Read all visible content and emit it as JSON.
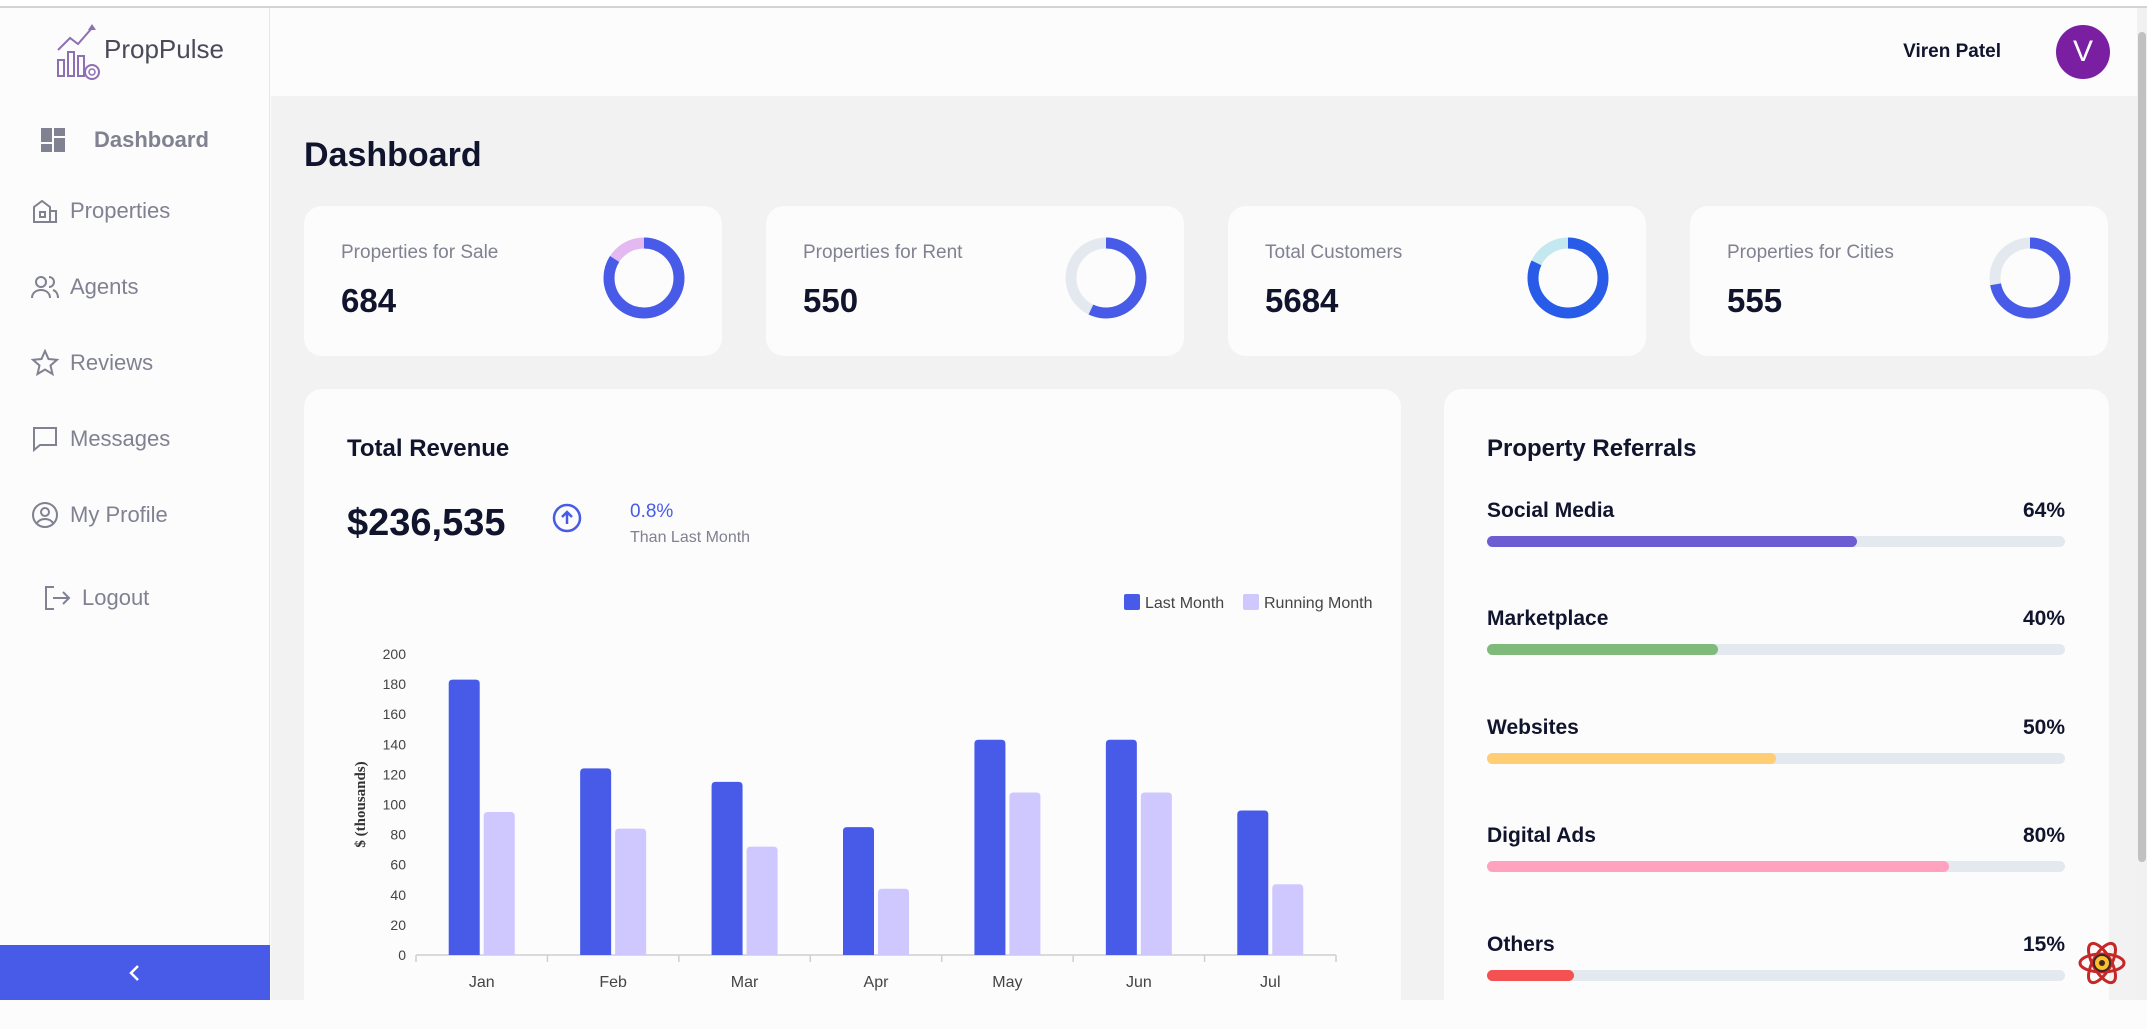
{
  "app": {
    "name": "PropPulse"
  },
  "colors": {
    "accent": "#475be8",
    "avatar": "#7b1fa2"
  },
  "user": {
    "name": "Viren Patel",
    "initial": "V"
  },
  "sidebar": {
    "items": [
      {
        "label": "Dashboard",
        "icon": "dashboard-icon",
        "active": true
      },
      {
        "label": "Properties",
        "icon": "building-icon"
      },
      {
        "label": "Agents",
        "icon": "people-icon"
      },
      {
        "label": "Reviews",
        "icon": "star-icon"
      },
      {
        "label": "Messages",
        "icon": "chat-icon"
      },
      {
        "label": "My Profile",
        "icon": "user-circle-icon"
      }
    ],
    "logout_label": "Logout",
    "collapse_icon": "chevron-left-icon"
  },
  "page": {
    "title": "Dashboard"
  },
  "stats": [
    {
      "label": "Properties for Sale",
      "value": "684",
      "donut_fraction": 0.84,
      "colors": [
        "#475be8",
        "#e4b8f1"
      ]
    },
    {
      "label": "Properties for Rent",
      "value": "550",
      "donut_fraction": 0.57,
      "colors": [
        "#475be8",
        "#e4e8ef"
      ]
    },
    {
      "label": "Total Customers",
      "value": "5684",
      "donut_fraction": 0.82,
      "colors": [
        "#275be8",
        "#c4e8ef"
      ]
    },
    {
      "label": "Properties for Cities",
      "value": "555",
      "donut_fraction": 0.72,
      "colors": [
        "#475be8",
        "#e4e8ef"
      ]
    }
  ],
  "revenue": {
    "title": "Total Revenue",
    "value": "$236,535",
    "change_pct": "0.8%",
    "change_text": "Than Last Month",
    "change_icon": "arrow-up-circle-icon"
  },
  "chart_data": {
    "type": "bar",
    "categories": [
      "Jan",
      "Feb",
      "Mar",
      "Apr",
      "May",
      "Jun",
      "Jul"
    ],
    "series": [
      {
        "name": "Last Month",
        "color": "#475be8",
        "values": [
          183,
          124,
          115,
          85,
          143,
          143,
          96
        ]
      },
      {
        "name": "Running Month",
        "color": "#cfc8ff",
        "values": [
          95,
          84,
          72,
          44,
          108,
          108,
          47
        ]
      }
    ],
    "ylabel": "$ (thousands)",
    "xlabel": "",
    "ylim": [
      0,
      200
    ],
    "yticks": [
      0,
      20,
      40,
      60,
      80,
      100,
      120,
      140,
      160,
      180,
      200
    ],
    "legend_position": "top-right",
    "grid": false
  },
  "referrals": {
    "title": "Property Referrals",
    "items": [
      {
        "name": "Social Media",
        "pct_label": "64%",
        "fraction": 0.64,
        "color": "#6c5dd3"
      },
      {
        "name": "Marketplace",
        "pct_label": "40%",
        "fraction": 0.4,
        "color": "#7fba7a"
      },
      {
        "name": "Websites",
        "pct_label": "50%",
        "fraction": 0.5,
        "color": "#ffce73"
      },
      {
        "name": "Digital Ads",
        "pct_label": "80%",
        "fraction": 0.8,
        "color": "#ffa2c0"
      },
      {
        "name": "Others",
        "pct_label": "15%",
        "fraction": 0.15,
        "color": "#f45252"
      }
    ]
  }
}
